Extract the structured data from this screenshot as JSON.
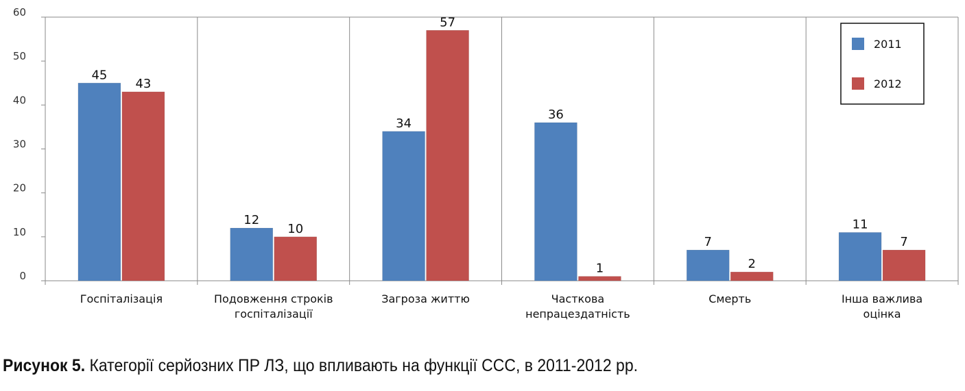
{
  "chart_data": {
    "type": "bar",
    "categories": [
      [
        "Госпіталізація"
      ],
      [
        "Подовження строків",
        "госпіталізації"
      ],
      [
        "Загроза життю"
      ],
      [
        "Часткова",
        "непрацездатність"
      ],
      [
        "Смерть"
      ],
      [
        "Інша важлива",
        "оцінка"
      ]
    ],
    "series": [
      {
        "name": "2011",
        "color": "#4f81bd",
        "values": [
          45,
          12,
          34,
          36,
          7,
          11
        ]
      },
      {
        "name": "2012",
        "color": "#c0504d",
        "values": [
          43,
          10,
          57,
          1,
          2,
          7
        ]
      }
    ],
    "ylim": [
      0,
      60
    ],
    "yticks": [
      0,
      10,
      20,
      30,
      40,
      50,
      60
    ],
    "grid": "vertical-category-separators",
    "legend_position": "top-right"
  },
  "caption": {
    "label": "Рисунок 5.",
    "text": " Категорії серйозних ПР ЛЗ, що впливають на функції ССС, в 2011-2012 рр."
  }
}
